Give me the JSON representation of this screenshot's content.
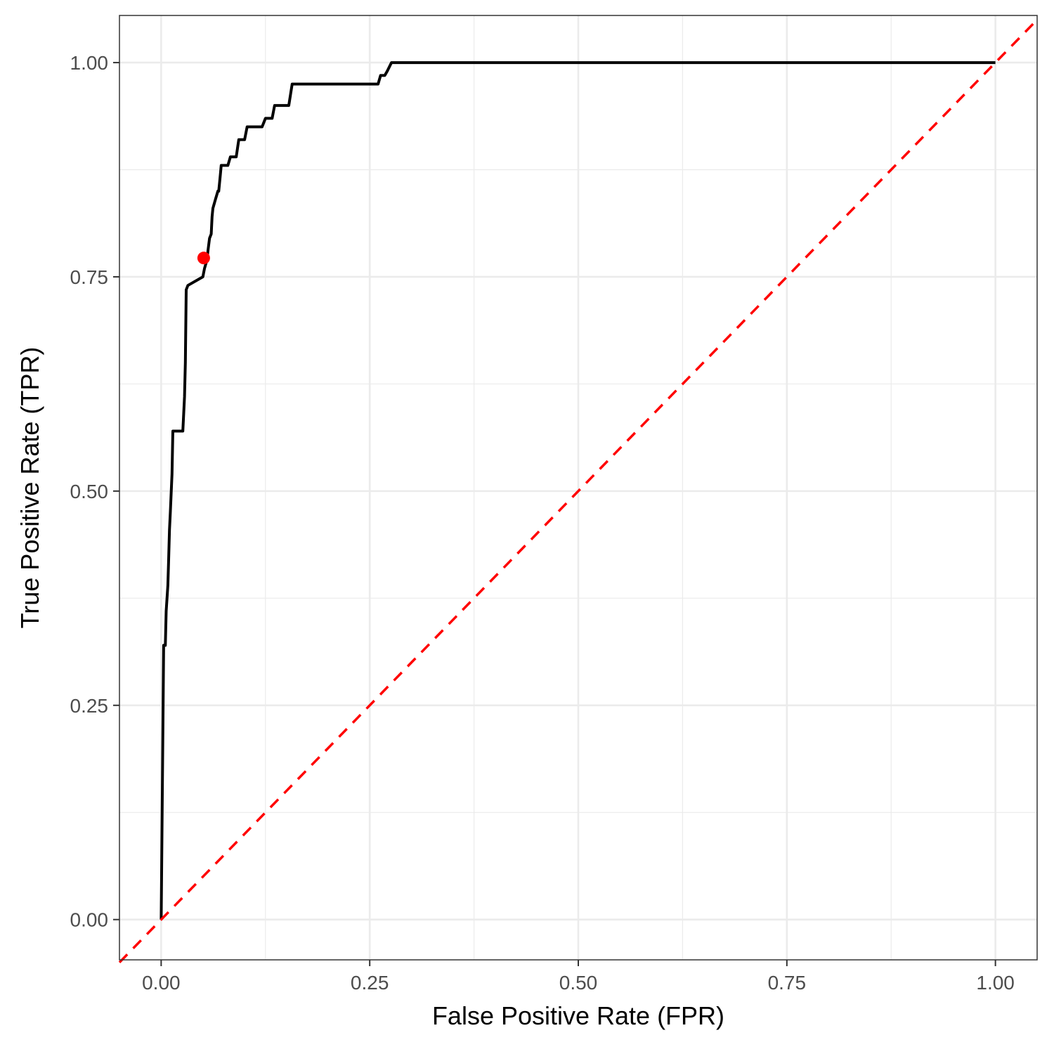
{
  "chart_data": {
    "type": "line",
    "title": "",
    "xlabel": "False Positive Rate (FPR)",
    "ylabel": "True Positive Rate (TPR)",
    "xlim": [
      -0.05,
      1.05
    ],
    "ylim": [
      -0.047,
      1.055
    ],
    "x_ticks": [
      0,
      0.25,
      0.5,
      0.75,
      1
    ],
    "x_tick_labels": [
      "0.00",
      "0.25",
      "0.50",
      "0.75",
      "1.00"
    ],
    "y_ticks": [
      0,
      0.25,
      0.5,
      0.75,
      1
    ],
    "y_tick_labels": [
      "0.00",
      "0.25",
      "0.50",
      "0.75",
      "1.00"
    ],
    "grid": true,
    "legend": "none",
    "series": [
      {
        "color": "#000000",
        "style": "solid",
        "x": [
          0.0,
          0.003,
          0.005,
          0.006,
          0.008,
          0.009,
          0.01,
          0.011,
          0.013,
          0.014,
          0.018,
          0.02,
          0.022,
          0.024,
          0.026,
          0.027,
          0.028,
          0.029,
          0.03,
          0.032,
          0.05,
          0.052,
          0.055,
          0.056,
          0.058,
          0.06,
          0.061,
          0.062,
          0.065,
          0.068,
          0.069,
          0.071,
          0.072,
          0.076,
          0.077,
          0.08,
          0.083,
          0.09,
          0.093,
          0.1,
          0.103,
          0.111,
          0.113,
          0.121,
          0.125,
          0.128,
          0.131,
          0.133,
          0.136,
          0.148,
          0.153,
          0.157,
          0.162,
          0.21,
          0.26,
          0.263,
          0.268,
          0.271,
          0.276,
          1.0
        ],
        "y": [
          0.0,
          0.32,
          0.32,
          0.36,
          0.39,
          0.42,
          0.455,
          0.475,
          0.52,
          0.57,
          0.57,
          0.57,
          0.57,
          0.57,
          0.57,
          0.59,
          0.61,
          0.65,
          0.735,
          0.74,
          0.75,
          0.76,
          0.77,
          0.78,
          0.795,
          0.8,
          0.82,
          0.83,
          0.84,
          0.85,
          0.85,
          0.87,
          0.88,
          0.88,
          0.88,
          0.88,
          0.89,
          0.89,
          0.91,
          0.91,
          0.925,
          0.925,
          0.925,
          0.925,
          0.935,
          0.935,
          0.935,
          0.935,
          0.95,
          0.95,
          0.95,
          0.975,
          0.975,
          0.975,
          0.975,
          0.985,
          0.985,
          0.99,
          1.0,
          1.0
        ]
      },
      {
        "color": "#ff0000",
        "style": "dashed",
        "x": [
          -0.05,
          1.05
        ],
        "y": [
          -0.05,
          1.05
        ]
      }
    ],
    "points": [
      {
        "x": 0.051,
        "y": 0.772,
        "color": "#ff0000"
      }
    ]
  }
}
